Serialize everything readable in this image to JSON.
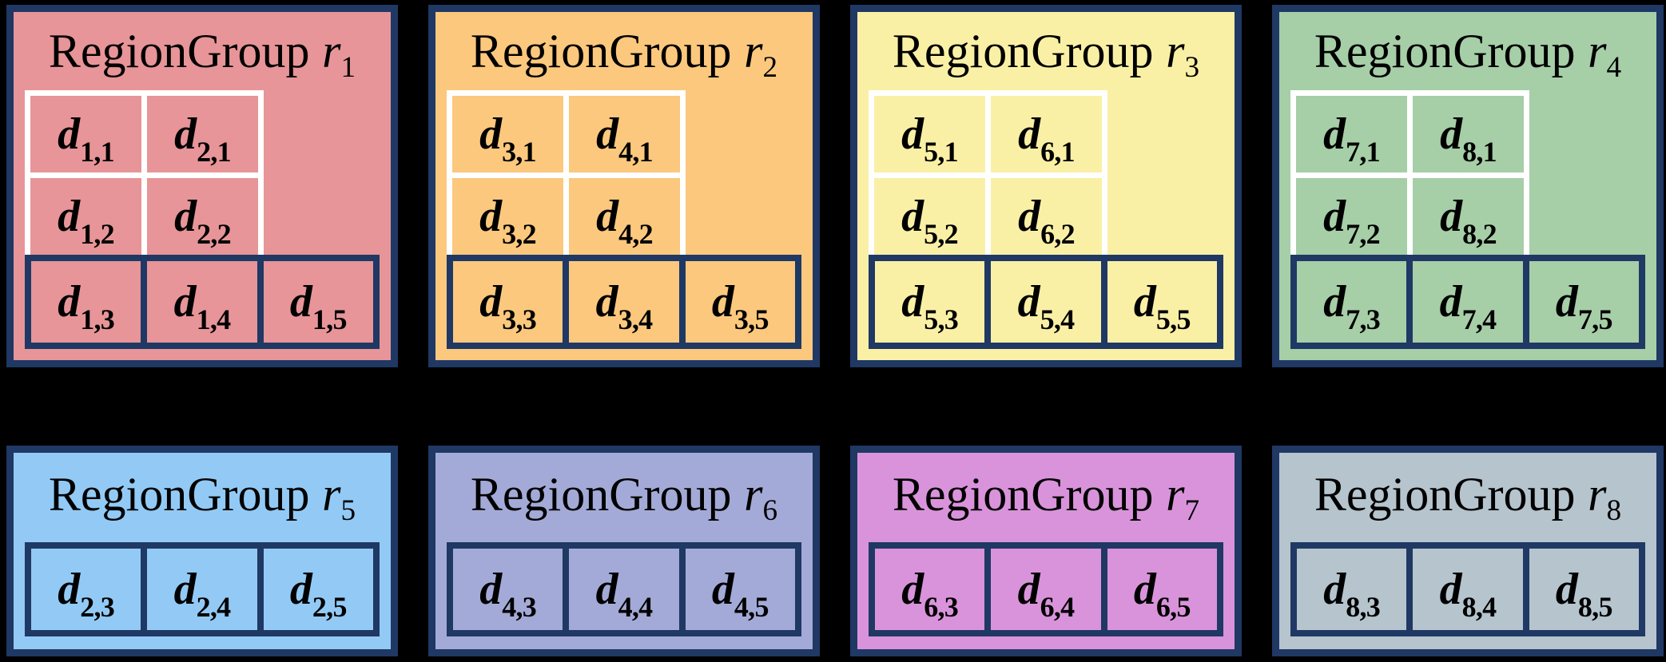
{
  "cell_symbol": "d",
  "colors": {
    "background": "#000000",
    "border_navy": "#1F3864",
    "grid_line_white": "#FFFFFF",
    "text": "#000000"
  },
  "groups": [
    {
      "title_label": "RegionGroup",
      "symbol": "r",
      "index": "1",
      "fill": "#E79598",
      "grid_cells": [
        "1,1",
        "2,1",
        "1,2",
        "2,2"
      ],
      "row_cells": [
        "1,3",
        "1,4",
        "1,5"
      ]
    },
    {
      "title_label": "RegionGroup",
      "symbol": "r",
      "index": "2",
      "fill": "#FBC87D",
      "grid_cells": [
        "3,1",
        "4,1",
        "3,2",
        "4,2"
      ],
      "row_cells": [
        "3,3",
        "3,4",
        "3,5"
      ]
    },
    {
      "title_label": "RegionGroup",
      "symbol": "r",
      "index": "3",
      "fill": "#FAF0A5",
      "grid_cells": [
        "5,1",
        "6,1",
        "5,2",
        "6,2"
      ],
      "row_cells": [
        "5,3",
        "5,4",
        "5,5"
      ]
    },
    {
      "title_label": "RegionGroup",
      "symbol": "r",
      "index": "4",
      "fill": "#A6CEA7",
      "grid_cells": [
        "7,1",
        "8,1",
        "7,2",
        "8,2"
      ],
      "row_cells": [
        "7,3",
        "7,4",
        "7,5"
      ]
    },
    {
      "title_label": "RegionGroup",
      "symbol": "r",
      "index": "5",
      "fill": "#92CAF5",
      "grid_cells": [],
      "row_cells": [
        "2,3",
        "2,4",
        "2,5"
      ]
    },
    {
      "title_label": "RegionGroup",
      "symbol": "r",
      "index": "6",
      "fill": "#A4AAD7",
      "grid_cells": [],
      "row_cells": [
        "4,3",
        "4,4",
        "4,5"
      ]
    },
    {
      "title_label": "RegionGroup",
      "symbol": "r",
      "index": "7",
      "fill": "#D993DB",
      "grid_cells": [],
      "row_cells": [
        "6,3",
        "6,4",
        "6,5"
      ]
    },
    {
      "title_label": "RegionGroup",
      "symbol": "r",
      "index": "8",
      "fill": "#B5C4CD",
      "grid_cells": [],
      "row_cells": [
        "8,3",
        "8,4",
        "8,5"
      ]
    }
  ]
}
